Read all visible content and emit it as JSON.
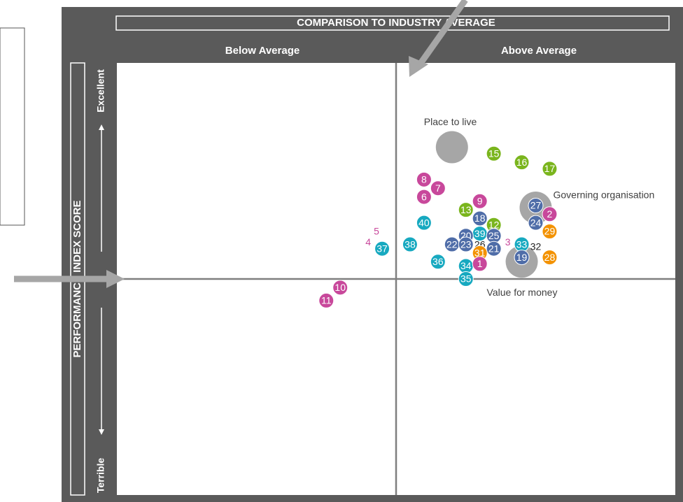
{
  "chart_data": {
    "type": "scatter",
    "title": "COMPARISON TO INDUSTRY AVERAGE",
    "x_left_label": "Below Average",
    "x_right_label": "Above Average",
    "y_label": "PERFORMANCE INDEX SCORE",
    "y_top_label": "Excellent",
    "y_bottom_label": "Terrible",
    "xlim": [
      -1,
      1
    ],
    "ylim": [
      -1,
      1
    ],
    "bubbles": [
      {
        "label": "Place to live",
        "x": 0.2,
        "y": 0.61
      },
      {
        "label": "Governing organisation",
        "x": 0.5,
        "y": 0.33
      },
      {
        "label": "Value for money",
        "x": 0.45,
        "y": 0.08
      }
    ],
    "points": [
      {
        "label": "15",
        "x": 0.35,
        "y": 0.58,
        "color": "#7ab51d",
        "marker": true
      },
      {
        "label": "16",
        "x": 0.45,
        "y": 0.54,
        "color": "#7ab51d",
        "marker": true
      },
      {
        "label": "17",
        "x": 0.55,
        "y": 0.51,
        "color": "#7ab51d",
        "marker": true
      },
      {
        "label": "8",
        "x": 0.1,
        "y": 0.46,
        "color": "#c8489b",
        "marker": true
      },
      {
        "label": "7",
        "x": 0.15,
        "y": 0.42,
        "color": "#c8489b",
        "marker": true
      },
      {
        "label": "6",
        "x": 0.1,
        "y": 0.38,
        "color": "#c8489b",
        "marker": true
      },
      {
        "label": "9",
        "x": 0.3,
        "y": 0.36,
        "color": "#c8489b",
        "marker": true
      },
      {
        "label": "13",
        "x": 0.25,
        "y": 0.32,
        "color": "#7ab51d",
        "marker": true
      },
      {
        "label": "18",
        "x": 0.3,
        "y": 0.28,
        "color": "#4f6da8",
        "marker": true
      },
      {
        "label": "40",
        "x": 0.1,
        "y": 0.26,
        "color": "#17a9c0",
        "marker": true
      },
      {
        "label": "12",
        "x": 0.35,
        "y": 0.25,
        "color": "#7ab51d",
        "marker": true
      },
      {
        "label": "27",
        "x": 0.5,
        "y": 0.34,
        "color": "#4f6da8",
        "marker": true
      },
      {
        "label": "2",
        "x": 0.55,
        "y": 0.3,
        "color": "#c8489b",
        "marker": true
      },
      {
        "label": "24",
        "x": 0.5,
        "y": 0.26,
        "color": "#4f6da8",
        "marker": true
      },
      {
        "label": "29",
        "x": 0.55,
        "y": 0.22,
        "color": "#f39200",
        "marker": true
      },
      {
        "label": "39",
        "x": 0.3,
        "y": 0.21,
        "color": "#17a9c0",
        "marker": true
      },
      {
        "label": "20",
        "x": 0.25,
        "y": 0.2,
        "color": "#4f6da8",
        "marker": true
      },
      {
        "label": "25",
        "x": 0.35,
        "y": 0.2,
        "color": "#4f6da8",
        "marker": true
      },
      {
        "label": "22",
        "x": 0.2,
        "y": 0.16,
        "color": "#4f6da8",
        "marker": true
      },
      {
        "label": "23",
        "x": 0.25,
        "y": 0.16,
        "color": "#4f6da8",
        "marker": true
      },
      {
        "label": "26",
        "x": 0.3,
        "y": 0.16,
        "color": "#222222",
        "marker": false
      },
      {
        "label": "21",
        "x": 0.35,
        "y": 0.14,
        "color": "#4f6da8",
        "marker": true
      },
      {
        "label": "38",
        "x": 0.05,
        "y": 0.16,
        "color": "#17a9c0",
        "marker": true
      },
      {
        "label": "33",
        "x": 0.45,
        "y": 0.16,
        "color": "#17a9c0",
        "marker": true
      },
      {
        "label": "32",
        "x": 0.5,
        "y": 0.15,
        "color": "#222222",
        "marker": false
      },
      {
        "label": "3",
        "x": 0.4,
        "y": 0.17,
        "color": "#c8489b",
        "marker": false
      },
      {
        "label": "31",
        "x": 0.3,
        "y": 0.12,
        "color": "#f39200",
        "marker": true
      },
      {
        "label": "19",
        "x": 0.45,
        "y": 0.1,
        "color": "#4f6da8",
        "marker": true
      },
      {
        "label": "28",
        "x": 0.55,
        "y": 0.1,
        "color": "#f39200",
        "marker": true
      },
      {
        "label": "36",
        "x": 0.15,
        "y": 0.08,
        "color": "#17a9c0",
        "marker": true
      },
      {
        "label": "34",
        "x": 0.25,
        "y": 0.06,
        "color": "#17a9c0",
        "marker": true
      },
      {
        "label": "1",
        "x": 0.3,
        "y": 0.07,
        "color": "#c8489b",
        "marker": true
      },
      {
        "label": "35",
        "x": 0.25,
        "y": 0.0,
        "color": "#17a9c0",
        "marker": true
      },
      {
        "label": "5",
        "x": -0.07,
        "y": 0.22,
        "color": "#c8489b",
        "marker": false
      },
      {
        "label": "4",
        "x": -0.1,
        "y": 0.17,
        "color": "#c8489b",
        "marker": false
      },
      {
        "label": "37",
        "x": -0.05,
        "y": 0.14,
        "color": "#17a9c0",
        "marker": true
      },
      {
        "label": "10",
        "x": -0.2,
        "y": -0.04,
        "color": "#c8489b",
        "marker": true
      },
      {
        "label": "11",
        "x": -0.25,
        "y": -0.1,
        "color": "#c8489b",
        "marker": true
      }
    ]
  }
}
